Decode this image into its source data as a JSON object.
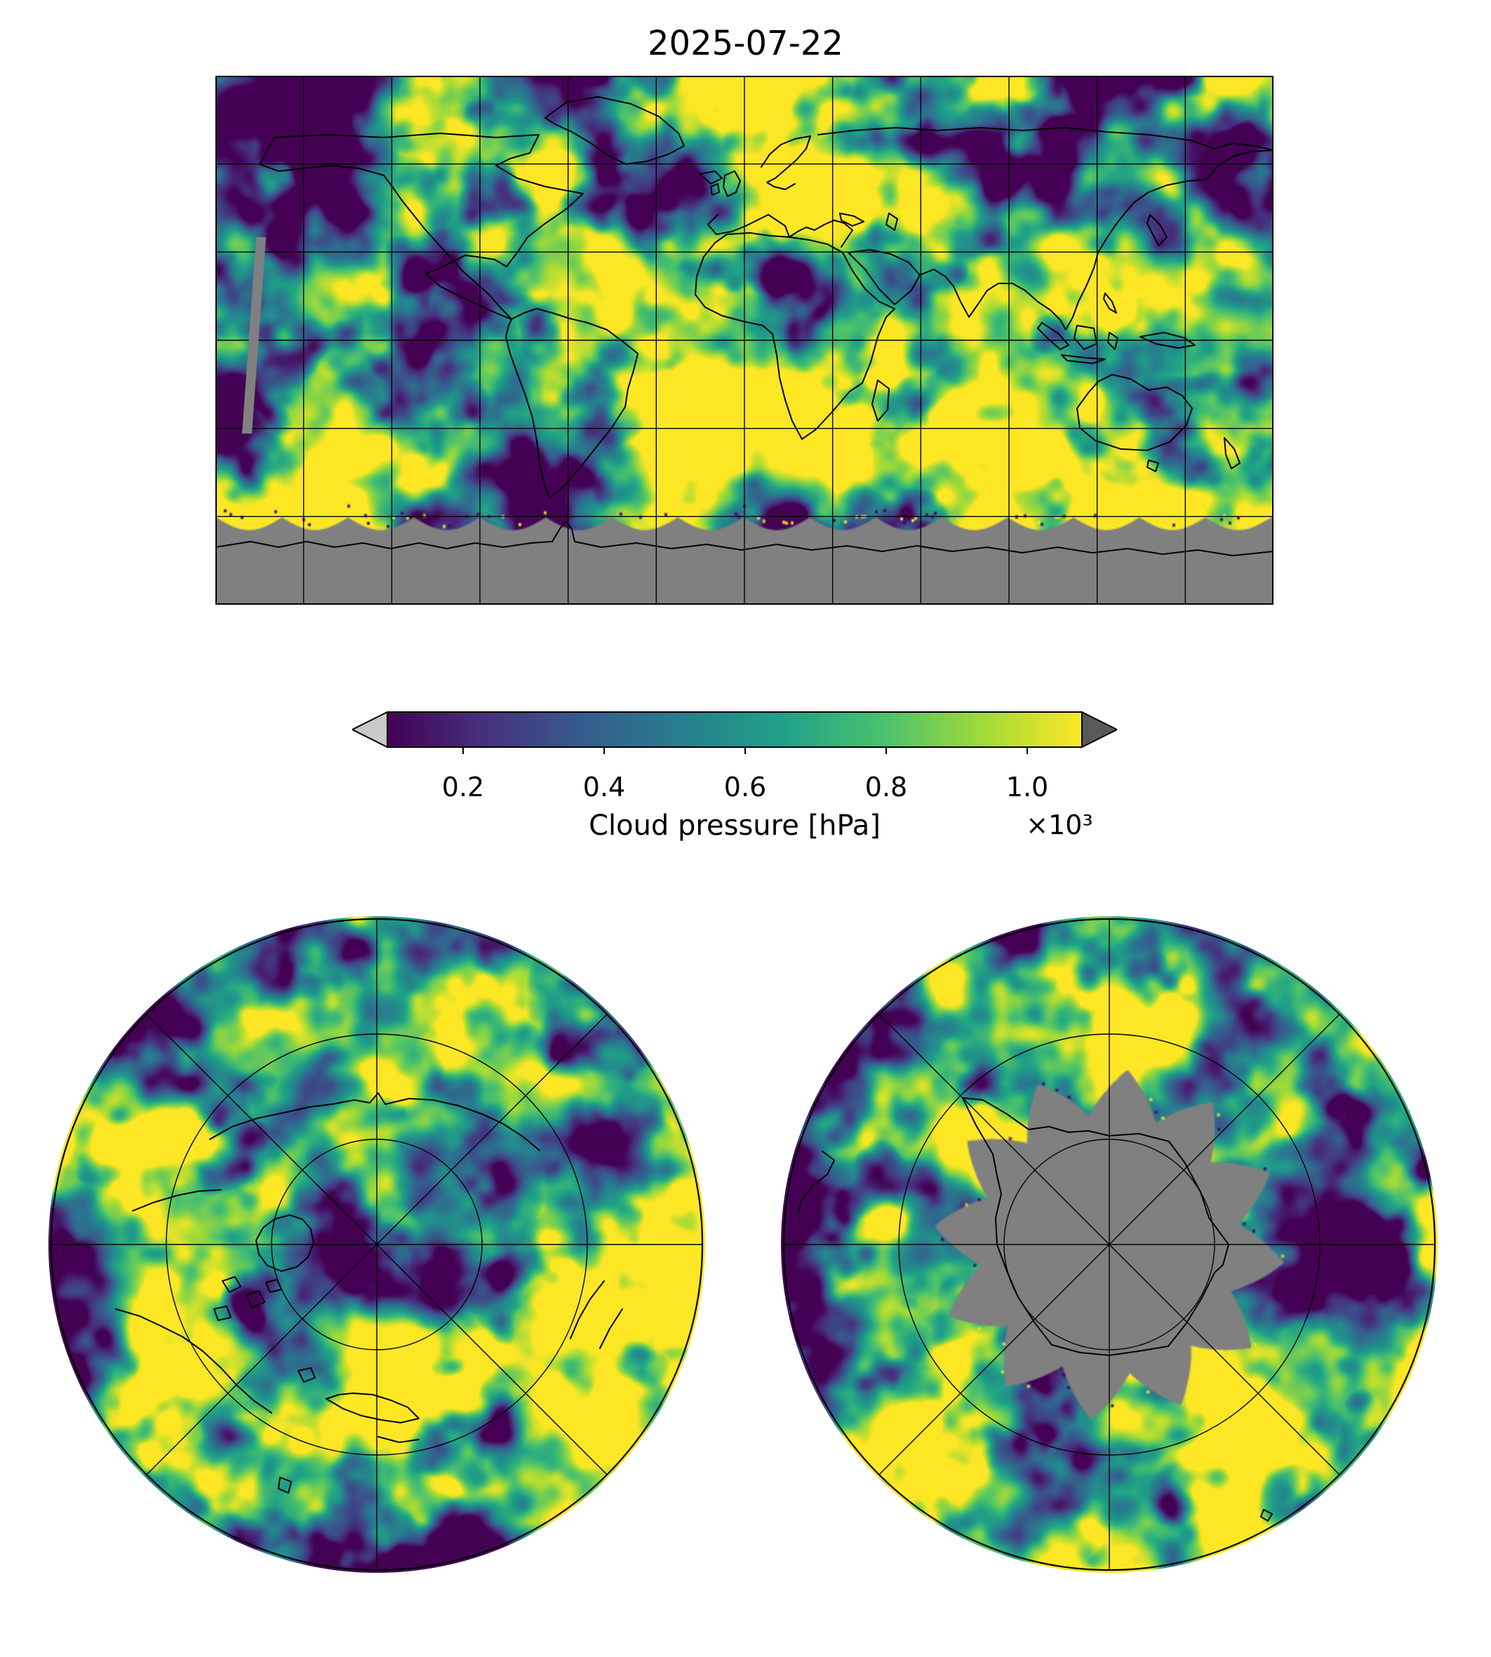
{
  "figure": {
    "title": "2025-07-22",
    "colorbar": {
      "label": "Cloud pressure [hPa]",
      "multiplier": "×10³",
      "ticks": [
        "0.2",
        "0.4",
        "0.6",
        "0.8",
        "1.0"
      ],
      "tick_values": [
        0.2,
        0.4,
        0.6,
        0.8,
        1.0
      ],
      "under_color": "#c9c9c9",
      "over_color": "#595959"
    },
    "colors": {
      "viridis": [
        "#440154",
        "#46317e",
        "#365c8d",
        "#277f8e",
        "#1fa187",
        "#4ac16d",
        "#a0da39",
        "#fde725"
      ],
      "nodata_gray": "#808080",
      "coastline": "#000000",
      "background": "#ffffff"
    },
    "panels": [
      {
        "name": "global-map"
      },
      {
        "name": "north-polar-map"
      },
      {
        "name": "south-polar-map"
      }
    ]
  },
  "chart_data": {
    "type": "heatmap",
    "title": "2025-07-22",
    "variable": "Cloud pressure",
    "units": "hPa",
    "colormap": "viridis",
    "colorbar_ticks": [
      0.2,
      0.4,
      0.6,
      0.8,
      1.0
    ],
    "colorbar_scale_multiplier": 1000,
    "colorbar_range_approx": [
      0.09,
      1.08
    ],
    "colorbar_extend": "both",
    "panels": [
      "global map with graticule",
      "north polar view",
      "south polar view"
    ],
    "nodata_color": "#808080"
  }
}
